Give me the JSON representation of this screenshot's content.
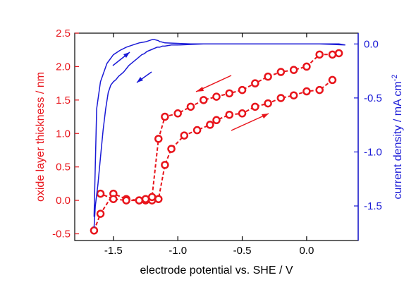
{
  "chart_data": {
    "type": "scatter",
    "xlabel": "electrode potential vs. SHE / V",
    "ylabel_left": "oxide layer thickness / nm",
    "ylabel_right": "current density / mA cm",
    "ylabel_right_superscript": "-2",
    "xlim": [
      -1.8,
      0.4
    ],
    "ylim_left": [
      -0.6,
      2.5
    ],
    "ylim_right": [
      -1.82,
      0.1
    ],
    "x_ticks": [
      -1.5,
      -1.0,
      -0.5,
      0.0
    ],
    "x_tick_labels": [
      "-1.5",
      "-1.0",
      "-0.5",
      "0.0"
    ],
    "y_left_ticks": [
      -0.5,
      0.0,
      0.5,
      1.0,
      1.5,
      2.0,
      2.5
    ],
    "y_left_tick_labels": [
      "-0.5",
      "0.0",
      "0.5",
      "1.0",
      "1.5",
      "2.0",
      "2.5"
    ],
    "y_right_ticks": [
      -1.5,
      -1.0,
      -0.5,
      0.0
    ],
    "y_right_tick_labels": [
      "-1.5",
      "-1.0",
      "-0.5",
      "0.0"
    ],
    "colors": {
      "thickness": "#e8141b",
      "current": "#1a1ad6",
      "axes": "#000000"
    },
    "series": [
      {
        "axis": "left",
        "marker": "open-circle",
        "x": [
          -1.65,
          -1.6,
          -1.5,
          -1.4,
          -1.3,
          -1.25,
          -1.2,
          -1.15,
          -1.1,
          -1.05,
          -0.95,
          -0.85,
          -0.75,
          -0.7,
          -0.6,
          -0.5,
          -0.4,
          -0.3,
          -0.2,
          -0.1,
          0.0,
          0.1,
          0.2
        ],
        "y": [
          -0.45,
          -0.2,
          0.1,
          0.02,
          0.0,
          0.0,
          0.0,
          0.02,
          0.53,
          0.77,
          0.97,
          1.05,
          1.13,
          1.2,
          1.28,
          1.3,
          1.4,
          1.45,
          1.53,
          1.57,
          1.63,
          1.65,
          1.8
        ]
      },
      {
        "axis": "left",
        "marker": "open-circle",
        "x": [
          0.25,
          0.2,
          0.1,
          0.0,
          -0.1,
          -0.2,
          -0.3,
          -0.4,
          -0.5,
          -0.6,
          -0.7,
          -0.8,
          -0.9,
          -1.0,
          -1.1,
          -1.15,
          -1.2,
          -1.25,
          -1.3,
          -1.4,
          -1.5,
          -1.6
        ],
        "y": [
          2.2,
          2.18,
          2.18,
          2.0,
          1.95,
          1.92,
          1.85,
          1.75,
          1.65,
          1.6,
          1.55,
          1.5,
          1.4,
          1.3,
          1.25,
          0.92,
          0.05,
          0.02,
          0.0,
          0.0,
          0.02,
          0.1
        ]
      },
      {
        "axis": "right",
        "type": "line",
        "x": [
          -1.65,
          -1.64,
          -1.62,
          -1.6,
          -1.58,
          -1.56,
          -1.54,
          -1.52,
          -1.5,
          -1.48,
          -1.46,
          -1.44,
          -1.42,
          -1.4,
          -1.38,
          -1.35,
          -1.32,
          -1.3,
          -1.28,
          -1.26,
          -1.24,
          -1.22,
          -1.2,
          -1.18,
          -1.16,
          -1.14,
          -1.12,
          -1.1,
          -1.05,
          -1.0,
          -0.8,
          -0.5,
          -0.2,
          0.1,
          0.3,
          0.25,
          0.0,
          -0.3,
          -0.6,
          -0.9,
          -1.1,
          -1.13,
          -1.14,
          -1.15,
          -1.18,
          -1.2,
          -1.25,
          -1.3,
          -1.35,
          -1.4,
          -1.45,
          -1.5,
          -1.55,
          -1.6,
          -1.63,
          -1.65
        ],
        "y": [
          -1.7,
          -1.5,
          -1.3,
          -1.05,
          -0.8,
          -0.6,
          -0.45,
          -0.38,
          -0.35,
          -0.33,
          -0.3,
          -0.28,
          -0.26,
          -0.23,
          -0.2,
          -0.17,
          -0.14,
          -0.12,
          -0.1,
          -0.09,
          -0.07,
          -0.06,
          -0.05,
          -0.04,
          -0.03,
          -0.03,
          -0.02,
          -0.02,
          -0.01,
          -0.01,
          0.0,
          0.0,
          0.0,
          0.0,
          -0.01,
          0.0,
          0.0,
          0.0,
          0.0,
          0.0,
          0.01,
          0.02,
          0.02,
          0.03,
          0.04,
          0.04,
          0.02,
          0.01,
          -0.01,
          -0.03,
          -0.06,
          -0.1,
          -0.18,
          -0.35,
          -0.6,
          -1.6
        ]
      }
    ]
  }
}
